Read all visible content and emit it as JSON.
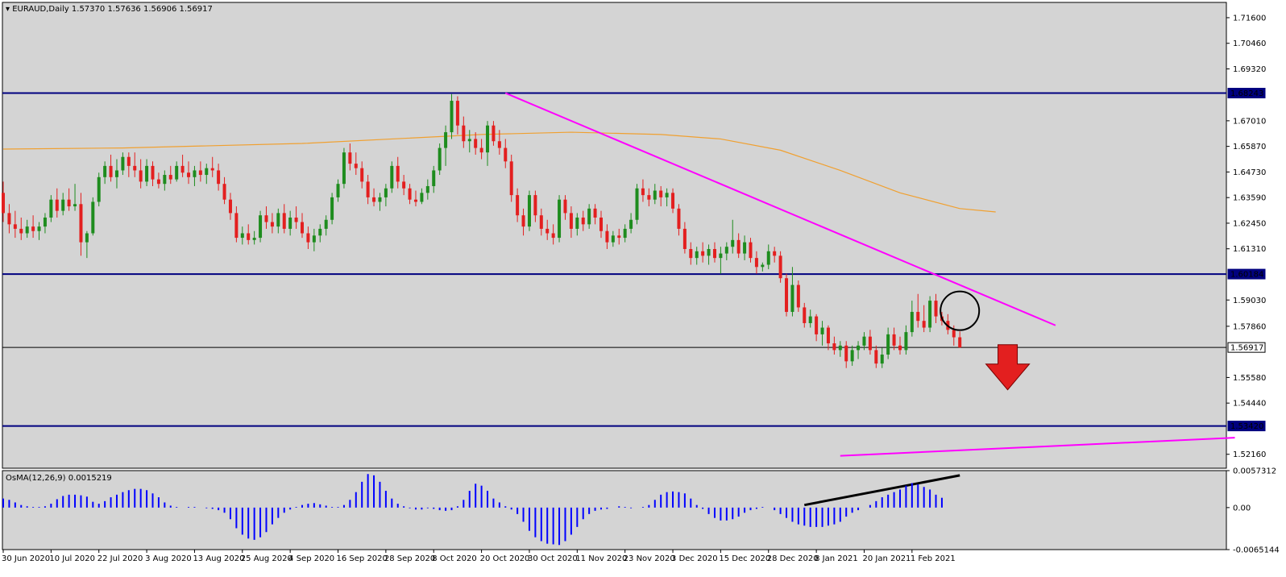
{
  "header": {
    "symbol": "EURAUD",
    "timeframe": "Daily",
    "title": "EURAUD,Daily",
    "ohlc": "1.57370 1.57636 1.56906 1.56917"
  },
  "indicator": {
    "label": "OsMA(12,26,9) 0.0015219",
    "axis_labels": [
      "0.0057312",
      "0.00",
      "-0.0065144"
    ]
  },
  "colors": {
    "background": "#d4d4d4",
    "bull": "#1e8c1e",
    "bear": "#e31f1f",
    "level_line": "#00007f",
    "trendline": "#ff00ff",
    "moving_average": "#f0a030",
    "osma_bar": "#0000ff",
    "arrow": "#e31f1f"
  },
  "chart_data": {
    "type": "candlestick",
    "symbol": "EURAUD",
    "timeframe": "Daily",
    "price_axis": {
      "range": [
        1.5154,
        1.7228
      ],
      "ticks": [
        "1.71600",
        "1.70460",
        "1.69320",
        "1.67010",
        "1.65870",
        "1.64730",
        "1.63590",
        "1.62450",
        "1.61310",
        "1.59030",
        "1.57860",
        "1.55580",
        "1.54440",
        "1.52160"
      ]
    },
    "level_lines": [
      {
        "value": 1.68243,
        "label": "1.68243"
      },
      {
        "value": 1.60184,
        "label": "1.60184"
      },
      {
        "value": 1.56917,
        "label": "1.56917",
        "style": "current"
      },
      {
        "value": 1.5342,
        "label": "1.53420"
      }
    ],
    "date_axis": {
      "labels": [
        "30 Jun 2020",
        "10 Jul 2020",
        "22 Jul 2020",
        "3 Aug 2020",
        "13 Aug 2020",
        "25 Aug 2020",
        "4 Sep 2020",
        "16 Sep 2020",
        "28 Sep 2020",
        "8 Oct 2020",
        "20 Oct 2020",
        "30 Oct 2020",
        "11 Nov 2020",
        "23 Nov 2020",
        "3 Dec 2020",
        "15 Dec 2020",
        "28 Dec 2020",
        "8 Jan 2021",
        "20 Jan 2021",
        "1 Feb 2021"
      ]
    },
    "candles": [
      [
        1.638,
        1.643,
        1.625,
        1.629
      ],
      [
        1.629,
        1.633,
        1.62,
        1.624
      ],
      [
        1.624,
        1.63,
        1.618,
        1.622
      ],
      [
        1.622,
        1.627,
        1.617,
        1.62
      ],
      [
        1.62,
        1.626,
        1.618,
        1.623
      ],
      [
        1.623,
        1.628,
        1.618,
        1.621
      ],
      [
        1.621,
        1.625,
        1.617,
        1.623
      ],
      [
        1.623,
        1.629,
        1.62,
        1.627
      ],
      [
        1.627,
        1.637,
        1.625,
        1.635
      ],
      [
        1.635,
        1.64,
        1.627,
        1.63
      ],
      [
        1.63,
        1.638,
        1.628,
        1.635
      ],
      [
        1.635,
        1.64,
        1.63,
        1.632
      ],
      [
        1.632,
        1.642,
        1.63,
        1.633
      ],
      [
        1.633,
        1.638,
        1.61,
        1.616
      ],
      [
        1.616,
        1.621,
        1.609,
        1.62
      ],
      [
        1.62,
        1.636,
        1.619,
        1.634
      ],
      [
        1.634,
        1.647,
        1.632,
        1.645
      ],
      [
        1.645,
        1.652,
        1.642,
        1.65
      ],
      [
        1.65,
        1.655,
        1.643,
        1.645
      ],
      [
        1.645,
        1.653,
        1.64,
        1.648
      ],
      [
        1.648,
        1.656,
        1.646,
        1.654
      ],
      [
        1.654,
        1.656,
        1.645,
        1.65
      ],
      [
        1.65,
        1.656,
        1.645,
        1.648
      ],
      [
        1.648,
        1.653,
        1.64,
        1.643
      ],
      [
        1.643,
        1.653,
        1.641,
        1.65
      ],
      [
        1.65,
        1.652,
        1.641,
        1.644
      ],
      [
        1.644,
        1.647,
        1.64,
        1.642
      ],
      [
        1.642,
        1.648,
        1.639,
        1.646
      ],
      [
        1.646,
        1.65,
        1.642,
        1.644
      ],
      [
        1.644,
        1.652,
        1.643,
        1.65
      ],
      [
        1.65,
        1.655,
        1.645,
        1.647
      ],
      [
        1.647,
        1.652,
        1.642,
        1.645
      ],
      [
        1.645,
        1.65,
        1.641,
        1.648
      ],
      [
        1.648,
        1.652,
        1.643,
        1.646
      ],
      [
        1.646,
        1.651,
        1.642,
        1.649
      ],
      [
        1.649,
        1.654,
        1.645,
        1.648
      ],
      [
        1.648,
        1.651,
        1.639,
        1.642
      ],
      [
        1.642,
        1.645,
        1.633,
        1.635
      ],
      [
        1.635,
        1.638,
        1.626,
        1.629
      ],
      [
        1.629,
        1.632,
        1.616,
        1.618
      ],
      [
        1.618,
        1.623,
        1.615,
        1.62
      ],
      [
        1.62,
        1.624,
        1.615,
        1.617
      ],
      [
        1.617,
        1.621,
        1.615,
        1.618
      ],
      [
        1.618,
        1.63,
        1.616,
        1.628
      ],
      [
        1.628,
        1.632,
        1.622,
        1.625
      ],
      [
        1.625,
        1.629,
        1.62,
        1.623
      ],
      [
        1.623,
        1.631,
        1.62,
        1.629
      ],
      [
        1.629,
        1.633,
        1.62,
        1.622
      ],
      [
        1.622,
        1.63,
        1.619,
        1.627
      ],
      [
        1.627,
        1.632,
        1.622,
        1.625
      ],
      [
        1.625,
        1.629,
        1.618,
        1.62
      ],
      [
        1.62,
        1.623,
        1.613,
        1.616
      ],
      [
        1.616,
        1.622,
        1.612,
        1.619
      ],
      [
        1.619,
        1.624,
        1.616,
        1.622
      ],
      [
        1.622,
        1.628,
        1.619,
        1.626
      ],
      [
        1.626,
        1.638,
        1.624,
        1.636
      ],
      [
        1.636,
        1.644,
        1.634,
        1.642
      ],
      [
        1.642,
        1.658,
        1.64,
        1.656
      ],
      [
        1.656,
        1.66,
        1.648,
        1.651
      ],
      [
        1.651,
        1.656,
        1.646,
        1.649
      ],
      [
        1.649,
        1.652,
        1.64,
        1.643
      ],
      [
        1.643,
        1.646,
        1.633,
        1.636
      ],
      [
        1.636,
        1.64,
        1.632,
        1.634
      ],
      [
        1.634,
        1.638,
        1.63,
        1.636
      ],
      [
        1.636,
        1.642,
        1.632,
        1.64
      ],
      [
        1.64,
        1.652,
        1.638,
        1.65
      ],
      [
        1.65,
        1.654,
        1.64,
        1.643
      ],
      [
        1.643,
        1.646,
        1.637,
        1.64
      ],
      [
        1.64,
        1.642,
        1.633,
        1.635
      ],
      [
        1.635,
        1.639,
        1.632,
        1.634
      ],
      [
        1.634,
        1.64,
        1.633,
        1.638
      ],
      [
        1.638,
        1.644,
        1.635,
        1.641
      ],
      [
        1.641,
        1.65,
        1.638,
        1.648
      ],
      [
        1.648,
        1.66,
        1.646,
        1.658
      ],
      [
        1.658,
        1.668,
        1.65,
        1.665
      ],
      [
        1.665,
        1.682,
        1.662,
        1.679
      ],
      [
        1.679,
        1.681,
        1.664,
        1.668
      ],
      [
        1.668,
        1.672,
        1.658,
        1.661
      ],
      [
        1.661,
        1.666,
        1.656,
        1.662
      ],
      [
        1.662,
        1.665,
        1.655,
        1.658
      ],
      [
        1.658,
        1.662,
        1.653,
        1.656
      ],
      [
        1.656,
        1.67,
        1.65,
        1.668
      ],
      [
        1.668,
        1.67,
        1.659,
        1.661
      ],
      [
        1.661,
        1.666,
        1.655,
        1.658
      ],
      [
        1.658,
        1.662,
        1.649,
        1.652
      ],
      [
        1.652,
        1.655,
        1.634,
        1.637
      ],
      [
        1.637,
        1.64,
        1.625,
        1.628
      ],
      [
        1.628,
        1.631,
        1.619,
        1.623
      ],
      [
        1.623,
        1.639,
        1.621,
        1.637
      ],
      [
        1.637,
        1.639,
        1.625,
        1.628
      ],
      [
        1.628,
        1.631,
        1.619,
        1.622
      ],
      [
        1.622,
        1.626,
        1.617,
        1.62
      ],
      [
        1.62,
        1.624,
        1.615,
        1.618
      ],
      [
        1.618,
        1.637,
        1.616,
        1.635
      ],
      [
        1.635,
        1.637,
        1.626,
        1.629
      ],
      [
        1.629,
        1.632,
        1.618,
        1.622
      ],
      [
        1.622,
        1.629,
        1.619,
        1.627
      ],
      [
        1.627,
        1.63,
        1.621,
        1.624
      ],
      [
        1.624,
        1.633,
        1.622,
        1.631
      ],
      [
        1.631,
        1.633,
        1.624,
        1.627
      ],
      [
        1.627,
        1.63,
        1.618,
        1.621
      ],
      [
        1.621,
        1.624,
        1.613,
        1.616
      ],
      [
        1.616,
        1.621,
        1.614,
        1.619
      ],
      [
        1.619,
        1.622,
        1.615,
        1.618
      ],
      [
        1.618,
        1.624,
        1.616,
        1.622
      ],
      [
        1.622,
        1.629,
        1.62,
        1.626
      ],
      [
        1.626,
        1.642,
        1.624,
        1.64
      ],
      [
        1.64,
        1.644,
        1.634,
        1.637
      ],
      [
        1.637,
        1.64,
        1.632,
        1.635
      ],
      [
        1.635,
        1.642,
        1.633,
        1.639
      ],
      [
        1.639,
        1.641,
        1.632,
        1.636
      ],
      [
        1.636,
        1.64,
        1.632,
        1.638
      ],
      [
        1.638,
        1.64,
        1.629,
        1.631
      ],
      [
        1.631,
        1.633,
        1.619,
        1.622
      ],
      [
        1.622,
        1.625,
        1.611,
        1.613
      ],
      [
        1.613,
        1.616,
        1.606,
        1.609
      ],
      [
        1.609,
        1.614,
        1.606,
        1.612
      ],
      [
        1.612,
        1.616,
        1.607,
        1.61
      ],
      [
        1.61,
        1.615,
        1.606,
        1.613
      ],
      [
        1.613,
        1.616,
        1.607,
        1.609
      ],
      [
        1.609,
        1.614,
        1.602,
        1.611
      ],
      [
        1.611,
        1.616,
        1.608,
        1.614
      ],
      [
        1.614,
        1.626,
        1.611,
        1.617
      ],
      [
        1.617,
        1.62,
        1.609,
        1.611
      ],
      [
        1.611,
        1.619,
        1.608,
        1.616
      ],
      [
        1.616,
        1.618,
        1.607,
        1.609
      ],
      [
        1.609,
        1.612,
        1.602,
        1.605
      ],
      [
        1.605,
        1.607,
        1.603,
        1.606
      ],
      [
        1.606,
        1.615,
        1.604,
        1.612
      ],
      [
        1.612,
        1.614,
        1.607,
        1.61
      ],
      [
        1.61,
        1.612,
        1.598,
        1.6
      ],
      [
        1.6,
        1.602,
        1.583,
        1.585
      ],
      [
        1.585,
        1.605,
        1.583,
        1.597
      ],
      [
        1.597,
        1.599,
        1.585,
        1.587
      ],
      [
        1.587,
        1.589,
        1.578,
        1.58
      ],
      [
        1.58,
        1.586,
        1.578,
        1.583
      ],
      [
        1.583,
        1.584,
        1.572,
        1.575
      ],
      [
        1.575,
        1.581,
        1.57,
        1.578
      ],
      [
        1.578,
        1.579,
        1.568,
        1.571
      ],
      [
        1.571,
        1.574,
        1.566,
        1.568
      ],
      [
        1.568,
        1.572,
        1.565,
        1.57
      ],
      [
        1.57,
        1.572,
        1.56,
        1.563
      ],
      [
        1.563,
        1.57,
        1.561,
        1.568
      ],
      [
        1.568,
        1.572,
        1.564,
        1.57
      ],
      [
        1.57,
        1.576,
        1.568,
        1.574
      ],
      [
        1.574,
        1.577,
        1.566,
        1.568
      ],
      [
        1.568,
        1.57,
        1.56,
        1.562
      ],
      [
        1.562,
        1.569,
        1.56,
        1.566
      ],
      [
        1.566,
        1.578,
        1.564,
        1.575
      ],
      [
        1.575,
        1.578,
        1.568,
        1.57
      ],
      [
        1.57,
        1.574,
        1.566,
        1.568
      ],
      [
        1.568,
        1.579,
        1.566,
        1.576
      ],
      [
        1.576,
        1.59,
        1.574,
        1.585
      ],
      [
        1.585,
        1.593,
        1.578,
        1.581
      ],
      [
        1.581,
        1.588,
        1.576,
        1.578
      ],
      [
        1.578,
        1.592,
        1.576,
        1.59
      ],
      [
        1.59,
        1.593,
        1.58,
        1.583
      ],
      [
        1.583,
        1.585,
        1.579,
        1.581
      ],
      [
        1.581,
        1.584,
        1.575,
        1.577
      ],
      [
        1.577,
        1.579,
        1.57,
        1.5737
      ],
      [
        1.5737,
        1.57636,
        1.56906,
        1.56917
      ]
    ],
    "moving_average": {
      "name": "",
      "points": [
        [
          0,
          1.6575
        ],
        [
          20,
          1.658
        ],
        [
          50,
          1.66
        ],
        [
          80,
          1.664
        ],
        [
          95,
          1.665
        ],
        [
          110,
          1.664
        ],
        [
          120,
          1.662
        ],
        [
          130,
          1.657
        ],
        [
          140,
          1.648
        ],
        [
          150,
          1.638
        ],
        [
          160,
          1.631
        ],
        [
          166,
          1.6295
        ]
      ]
    },
    "trendlines": [
      {
        "from": [
          84,
          1.68243
        ],
        "to": [
          176,
          1.579
        ]
      },
      {
        "from": [
          140,
          1.5209
        ],
        "to": [
          206,
          1.529
        ]
      }
    ],
    "annotations": [
      {
        "type": "circle",
        "at": [
          160,
          1.5855
        ]
      },
      {
        "type": "down-arrow",
        "at": [
          168,
          1.56
        ]
      },
      {
        "type": "divergence-line",
        "from": [
          134,
          0.0004
        ],
        "to": [
          160,
          0.005
        ]
      }
    ],
    "osma": {
      "name": "OsMA(12,26,9)",
      "fast": 12,
      "slow": 26,
      "signal": 9,
      "current": 0.0015219,
      "range": [
        -0.0065144,
        0.0057312
      ],
      "ticks": [
        "0.0057312",
        "0.00",
        "-0.0065144"
      ],
      "values": [
        0.0014,
        0.0012,
        0.0008,
        0.0004,
        0.0002,
        0.0001,
        0.0001,
        0.0002,
        0.0006,
        0.0013,
        0.0018,
        0.002,
        0.002,
        0.0019,
        0.0017,
        0.0009,
        0.0006,
        0.001,
        0.0016,
        0.002,
        0.0024,
        0.0027,
        0.0029,
        0.0029,
        0.0027,
        0.0022,
        0.0016,
        0.0008,
        0.0003,
        0.0001,
        0.0,
        0.0001,
        0.0001,
        0.0,
        -0.0001,
        -0.0002,
        -0.0004,
        -0.0008,
        -0.0018,
        -0.0032,
        -0.0042,
        -0.0048,
        -0.005,
        -0.0046,
        -0.0038,
        -0.0026,
        -0.0016,
        -0.0008,
        -0.0003,
        0.0001,
        0.0004,
        0.0006,
        0.0007,
        0.0005,
        0.0003,
        0.0001,
        0.0001,
        0.0004,
        0.0012,
        0.0024,
        0.004,
        0.0052,
        0.005,
        0.004,
        0.0026,
        0.0014,
        0.0006,
        0.0002,
        -0.0001,
        -0.0003,
        -0.0003,
        -0.0001,
        -0.0002,
        -0.0004,
        -0.0005,
        -0.0004,
        0.0002,
        0.0012,
        0.0026,
        0.0037,
        0.0034,
        0.0026,
        0.0014,
        0.0008,
        0.0002,
        -0.0003,
        -0.001,
        -0.0022,
        -0.0036,
        -0.0046,
        -0.0052,
        -0.0056,
        -0.0057,
        -0.0058,
        -0.0052,
        -0.0042,
        -0.003,
        -0.0018,
        -0.001,
        -0.0005,
        -0.0003,
        -0.0002,
        0.0,
        0.0002,
        0.0001,
        -0.0001,
        0.0,
        0.0001,
        0.0004,
        0.0012,
        0.002,
        0.0024,
        0.0025,
        0.0024,
        0.0022,
        0.0014,
        0.0004,
        -0.0002,
        -0.001,
        -0.0016,
        -0.002,
        -0.002,
        -0.0018,
        -0.0014,
        -0.0008,
        -0.0004,
        -0.0002,
        0.0001,
        0.0,
        -0.0004,
        -0.001,
        -0.0016,
        -0.0022,
        -0.0026,
        -0.0028,
        -0.003,
        -0.003,
        -0.003,
        -0.0028,
        -0.0026,
        -0.0022,
        -0.0014,
        -0.0008,
        -0.0004,
        0.0,
        0.0004,
        0.001,
        0.0016,
        0.002,
        0.0024,
        0.0028,
        0.0034,
        0.0038,
        0.0036,
        0.0032,
        0.0028,
        0.002,
        0.0015219
      ]
    }
  }
}
